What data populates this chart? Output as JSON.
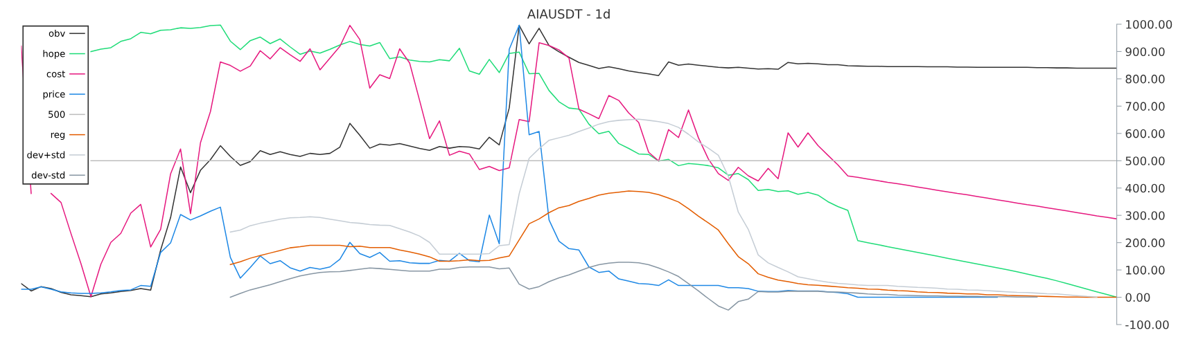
{
  "chart_data": {
    "type": "line",
    "title": "AIAUSDT - 1d",
    "categories": [
      null,
      null,
      null,
      null,
      null,
      null,
      null,
      null,
      null,
      null,
      null,
      null,
      null,
      null,
      null,
      null,
      null,
      null,
      null,
      null,
      null,
      null,
      null,
      null,
      null,
      null,
      null,
      null,
      null,
      null,
      null,
      null,
      null,
      null,
      null,
      null,
      null,
      null,
      null,
      null,
      null,
      null,
      null,
      null,
      null,
      null,
      null,
      null,
      null,
      null,
      null,
      null,
      null,
      null,
      null,
      null,
      null,
      null,
      null,
      null,
      null,
      null,
      null,
      null,
      null,
      null,
      null,
      null,
      null,
      null,
      null,
      null,
      null,
      null,
      null,
      null,
      null,
      null,
      null,
      null,
      null,
      null,
      null,
      null,
      null,
      null,
      null,
      null,
      null,
      null,
      null,
      null,
      null,
      null,
      null,
      null,
      null,
      null,
      null,
      null,
      null,
      null,
      null,
      null,
      null,
      null,
      null,
      null,
      null,
      null,
      null
    ],
    "series": [
      {
        "name": "obv",
        "color": "#333333",
        "values": [
          50,
          23,
          39,
          32,
          18,
          9,
          6,
          2,
          12,
          16,
          21,
          25,
          32,
          26,
          173,
          292,
          477,
          383,
          465,
          504,
          555,
          516,
          483,
          497,
          537,
          523,
          533,
          523,
          516,
          527,
          523,
          527,
          550,
          637,
          593,
          546,
          561,
          557,
          563,
          554,
          545,
          538,
          552,
          546,
          552,
          550,
          543,
          586,
          558,
          693,
          996,
          928,
          985,
          922,
          899,
          879,
          860,
          849,
          838,
          844,
          837,
          829,
          823,
          818,
          812,
          862,
          850,
          854,
          850,
          846,
          842,
          840,
          842,
          839,
          836,
          837,
          835,
          860,
          855,
          857,
          855,
          852,
          852,
          848,
          847,
          846,
          846,
          845,
          845,
          845,
          845,
          844,
          844,
          844,
          843,
          843,
          842,
          842,
          842,
          842,
          842,
          842,
          841,
          841,
          840,
          840,
          839,
          839,
          839,
          839,
          839
        ]
      },
      {
        "name": "hope",
        "color": "#1fdc78",
        "values": [
          null,
          null,
          null,
          null,
          null,
          null,
          null,
          900,
          909,
          914,
          937,
          947,
          970,
          965,
          978,
          980,
          987,
          985,
          988,
          995,
          997,
          938,
          907,
          940,
          953,
          929,
          946,
          917,
          890,
          902,
          894,
          908,
          924,
          937,
          926,
          920,
          933,
          874,
          880,
          869,
          864,
          862,
          870,
          866,
          912,
          829,
          817,
          871,
          823,
          893,
          898,
          819,
          820,
          757,
          716,
          693,
          689,
          634,
          599,
          608,
          563,
          545,
          525,
          523,
          499,
          505,
          482,
          490,
          487,
          482,
          474,
          447,
          453,
          431,
          391,
          395,
          387,
          390,
          377,
          384,
          374,
          350,
          332,
          318,
          207,
          200,
          193,
          185,
          178,
          171,
          164,
          157,
          150,
          143,
          136,
          129,
          122,
          115,
          108,
          101,
          93,
          85,
          77,
          69,
          60,
          50,
          40,
          30,
          20,
          10,
          0
        ]
      },
      {
        "name": "cost",
        "color": "#e6197f",
        "values": [
          920,
          380,
          null,
          380,
          347,
          233,
          123,
          2,
          121,
          201,
          234,
          308,
          340,
          184,
          249,
          452,
          543,
          306,
          566,
          680,
          862,
          849,
          828,
          847,
          903,
          873,
          914,
          888,
          864,
          910,
          833,
          876,
          919,
          996,
          944,
          766,
          815,
          801,
          910,
          858,
          721,
          581,
          646,
          520,
          535,
          525,
          468,
          479,
          464,
          474,
          651,
          643,
          932,
          922,
          906,
          876,
          689,
          672,
          654,
          739,
          721,
          675,
          640,
          531,
          499,
          614,
          585,
          686,
          584,
          506,
          453,
          428,
          476,
          445,
          426,
          472,
          434,
          602,
          550,
          602,
          556,
          520,
          485,
          444,
          439,
          433,
          427,
          421,
          416,
          410,
          404,
          398,
          392,
          386,
          380,
          375,
          369,
          363,
          357,
          351,
          345,
          339,
          334,
          328,
          322,
          316,
          310,
          304,
          298,
          293,
          287
        ]
      },
      {
        "name": "price",
        "color": "#1e88e5",
        "values": [
          29,
          29,
          38,
          29,
          20,
          16,
          14,
          14,
          16,
          20,
          25,
          27,
          43,
          40,
          164,
          199,
          303,
          283,
          298,
          315,
          330,
          146,
          70,
          109,
          151,
          123,
          134,
          108,
          96,
          109,
          103,
          111,
          139,
          201,
          160,
          146,
          164,
          132,
          134,
          126,
          124,
          124,
          135,
          132,
          161,
          134,
          130,
          301,
          196,
          908,
          996,
          595,
          607,
          283,
          205,
          178,
          173,
          111,
          91,
          96,
          67,
          59,
          50,
          48,
          43,
          64,
          43,
          43,
          43,
          43,
          43,
          35,
          35,
          32,
          22,
          21,
          21,
          25,
          23,
          23,
          23,
          20,
          17,
          13,
          0,
          0,
          0,
          0,
          0,
          0,
          0,
          0,
          0,
          0,
          0,
          0,
          0,
          0,
          0,
          null,
          null,
          null,
          null,
          null,
          null,
          null,
          null,
          null,
          null,
          null,
          null
        ]
      },
      {
        "name": "500",
        "color": "#bdbdbd",
        "values": [
          null,
          null,
          null,
          null,
          null,
          null,
          null,
          500,
          500,
          500,
          500,
          500,
          500,
          500,
          500,
          500,
          500,
          500,
          500,
          500,
          500,
          500,
          500,
          500,
          500,
          500,
          500,
          500,
          500,
          500,
          500,
          500,
          500,
          500,
          500,
          500,
          500,
          500,
          500,
          500,
          500,
          500,
          500,
          500,
          500,
          500,
          500,
          500,
          500,
          500,
          500,
          500,
          500,
          500,
          500,
          500,
          500,
          500,
          500,
          500,
          500,
          500,
          500,
          500,
          500,
          500,
          500,
          500,
          500,
          500,
          500,
          500,
          500,
          500,
          500,
          500,
          500,
          500,
          500,
          500,
          500,
          500,
          500,
          500,
          500,
          500,
          500,
          500,
          500,
          500,
          500,
          500,
          500,
          500,
          500,
          500,
          500,
          500,
          500,
          500,
          500,
          500,
          500,
          500,
          500,
          500,
          500,
          500,
          500,
          500,
          500
        ]
      },
      {
        "name": "reg",
        "color": "#e35d00",
        "values": [
          null,
          null,
          null,
          null,
          null,
          null,
          null,
          null,
          null,
          null,
          null,
          null,
          null,
          null,
          null,
          null,
          null,
          null,
          null,
          null,
          null,
          120,
          130,
          143,
          153,
          162,
          171,
          181,
          185,
          190,
          190,
          190,
          190,
          185,
          187,
          182,
          182,
          182,
          173,
          166,
          158,
          148,
          132,
          132,
          134,
          137,
          134,
          135,
          144,
          151,
          210,
          269,
          287,
          310,
          328,
          336,
          351,
          362,
          374,
          381,
          385,
          389,
          387,
          384,
          376,
          363,
          349,
          324,
          297,
          272,
          246,
          196,
          149,
          123,
          86,
          73,
          63,
          57,
          50,
          46,
          44,
          41,
          38,
          35,
          33,
          30,
          29,
          26,
          24,
          23,
          20,
          18,
          17,
          15,
          14,
          12,
          12,
          9,
          9,
          7,
          6,
          5,
          4,
          3,
          2,
          1,
          1,
          0,
          0,
          0,
          0
        ]
      },
      {
        "name": "dev+std",
        "color": "#c5cdd5",
        "values": [
          null,
          null,
          null,
          null,
          null,
          null,
          null,
          null,
          null,
          null,
          null,
          null,
          null,
          null,
          null,
          null,
          null,
          null,
          null,
          null,
          null,
          239,
          246,
          262,
          271,
          278,
          286,
          291,
          292,
          295,
          292,
          286,
          280,
          274,
          271,
          266,
          264,
          263,
          251,
          239,
          224,
          201,
          158,
          158,
          158,
          158,
          158,
          160,
          189,
          193,
          379,
          509,
          544,
          575,
          584,
          593,
          607,
          620,
          634,
          643,
          648,
          650,
          652,
          648,
          643,
          636,
          622,
          597,
          569,
          546,
          520,
          443,
          312,
          249,
          155,
          126,
          109,
          93,
          75,
          68,
          61,
          55,
          51,
          48,
          45,
          43,
          43,
          43,
          40,
          38,
          36,
          35,
          33,
          30,
          29,
          27,
          26,
          24,
          22,
          20,
          18,
          17,
          15,
          13,
          12,
          9,
          6,
          3,
          1,
          null,
          null
        ]
      },
      {
        "name": "dev-std",
        "color": "#8796a3",
        "values": [
          null,
          null,
          null,
          null,
          null,
          null,
          null,
          null,
          null,
          null,
          null,
          null,
          null,
          null,
          null,
          null,
          null,
          null,
          null,
          null,
          null,
          0,
          14,
          27,
          36,
          46,
          57,
          68,
          78,
          85,
          91,
          93,
          94,
          98,
          103,
          107,
          105,
          102,
          99,
          96,
          96,
          96,
          103,
          103,
          109,
          111,
          111,
          111,
          104,
          107,
          48,
          30,
          39,
          57,
          71,
          82,
          96,
          109,
          119,
          125,
          128,
          128,
          126,
          119,
          107,
          93,
          76,
          50,
          23,
          -5,
          -32,
          -47,
          -16,
          -7,
          21,
          19,
          19,
          22,
          22,
          22,
          22,
          19,
          19,
          17,
          15,
          12,
          10,
          10,
          8,
          7,
          6,
          5,
          5,
          4,
          4,
          3,
          3,
          2,
          2,
          2,
          1,
          1,
          1,
          null,
          null,
          null,
          null,
          null,
          null,
          null,
          null
        ]
      }
    ],
    "ylim": [
      -100,
      1000
    ],
    "yticks": [
      {
        "value": -100,
        "label": "-100.00"
      },
      {
        "value": 0,
        "label": "0.00"
      },
      {
        "value": 100,
        "label": "100.00"
      },
      {
        "value": 200,
        "label": "200.00"
      },
      {
        "value": 300,
        "label": "300.00"
      },
      {
        "value": 400,
        "label": "400.00"
      },
      {
        "value": 500,
        "label": "500.00"
      },
      {
        "value": 600,
        "label": "600.00"
      },
      {
        "value": 700,
        "label": "700.00"
      },
      {
        "value": 800,
        "label": "800.00"
      },
      {
        "value": 900,
        "label": "900.00"
      },
      {
        "value": 1000,
        "label": "1000.00"
      }
    ],
    "legend": "top left",
    "tick_labels": "y",
    "marker": "none",
    "line_style": "solid"
  }
}
